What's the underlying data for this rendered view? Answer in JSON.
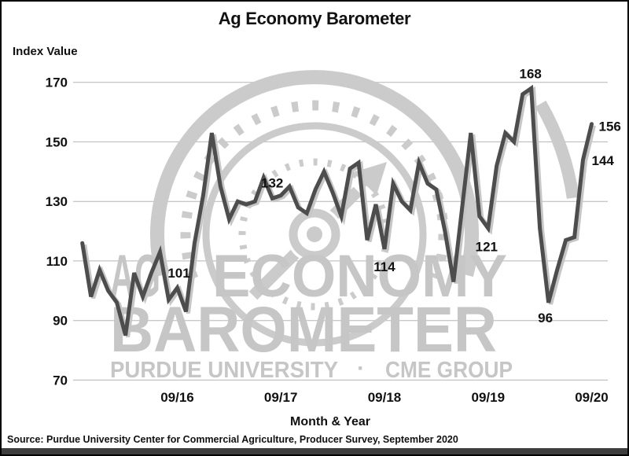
{
  "header": {
    "title": "Ag Economy Barometer"
  },
  "axes": {
    "y_axis_label": "Index Value",
    "x_axis_label": "Month & Year",
    "y_ticks": [
      170,
      150,
      130,
      110,
      90,
      70
    ],
    "x_ticks": [
      "09/16",
      "09/17",
      "09/18",
      "09/19",
      "09/20"
    ]
  },
  "watermark": {
    "word1": "AG",
    "word2": "ECONOMY",
    "word3": "BAROMETER",
    "org1": "PURDUE UNIVERSITY",
    "separator": "·",
    "org2": "CME GROUP"
  },
  "source_note": "Source: Purdue University Center for Commercial Agriculture, Producer Survey, September 2020",
  "colors": {
    "line": "#4d4d4d",
    "line_shadow": "#c6c6c6",
    "grid": "#b5b5b5",
    "watermark": "#cbcbcb",
    "text": "#111111",
    "bottom_bar": "#3e3e3e"
  },
  "chart_data": {
    "type": "line",
    "title": "Ag Economy Barometer",
    "xlabel": "Month & Year",
    "ylabel": "Index Value",
    "ylim": [
      70,
      170
    ],
    "grid": "horizontal",
    "x_frequency": "monthly",
    "x_start": "10/2015",
    "x_end": "09/2020",
    "x_tick_labels": [
      "09/16",
      "09/17",
      "09/18",
      "09/19",
      "09/20"
    ],
    "x_tick_indices": [
      11,
      23,
      35,
      47,
      59
    ],
    "values": [
      116,
      98,
      107,
      100,
      96,
      85,
      106,
      98,
      106,
      113,
      97,
      101,
      93,
      116,
      132,
      153,
      135,
      124,
      130,
      129,
      130,
      138,
      131,
      132,
      135,
      128,
      126,
      134,
      140,
      133,
      125,
      141,
      143,
      117,
      129,
      114,
      136,
      130,
      127,
      143,
      136,
      134,
      120,
      103,
      128,
      153,
      125,
      121,
      142,
      153,
      150,
      166,
      168,
      121,
      96,
      107,
      117,
      118,
      144,
      156
    ],
    "annotations": [
      {
        "index": 11,
        "text": "101"
      },
      {
        "index": 23,
        "text": "132"
      },
      {
        "index": 35,
        "text": "114"
      },
      {
        "index": 47,
        "text": "121"
      },
      {
        "index": 52,
        "text": "168"
      },
      {
        "index": 54,
        "text": "96"
      },
      {
        "index": 58,
        "text": "144"
      },
      {
        "index": 59,
        "text": "156"
      }
    ]
  }
}
